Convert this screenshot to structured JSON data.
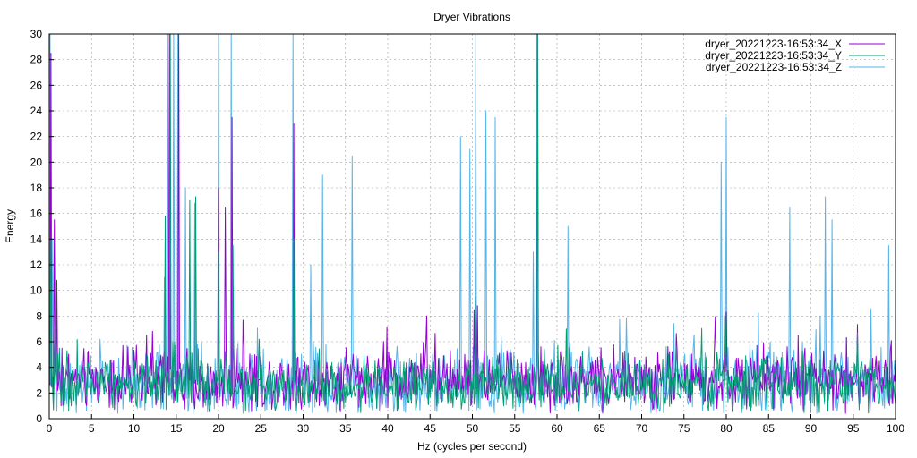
{
  "chart_data": {
    "type": "line",
    "title": "Dryer Vibrations",
    "xlabel": "Hz (cycles per second)",
    "ylabel": "Energy",
    "xlim": [
      0,
      100
    ],
    "ylim": [
      0,
      30
    ],
    "x_ticks": [
      0,
      5,
      10,
      15,
      20,
      25,
      30,
      35,
      40,
      45,
      50,
      55,
      60,
      65,
      70,
      75,
      80,
      85,
      90,
      95,
      100
    ],
    "y_ticks": [
      0,
      2,
      4,
      6,
      8,
      10,
      12,
      14,
      16,
      18,
      20,
      22,
      24,
      26,
      28,
      30
    ],
    "grid": true,
    "legend_position": "top-right",
    "x_step": 0.1,
    "series": [
      {
        "name": "dryer_20221223-16:53:34_X",
        "color": "#9400d3",
        "baseline": 3.0,
        "amplitude": 1.1,
        "peaks": [
          [
            0.2,
            28.5
          ],
          [
            0.6,
            15.5
          ],
          [
            0.9,
            10.8
          ],
          [
            1.5,
            5.5
          ],
          [
            11.5,
            6.5
          ],
          [
            14.2,
            30
          ],
          [
            15.3,
            30
          ],
          [
            20.0,
            18
          ],
          [
            20.8,
            16.5
          ],
          [
            21.6,
            23.5
          ],
          [
            28.9,
            23
          ],
          [
            44.6,
            8
          ],
          [
            50.2,
            8.5
          ],
          [
            50.6,
            8.8
          ],
          [
            57.7,
            30
          ],
          [
            80.0,
            8.3
          ]
        ]
      },
      {
        "name": "dryer_20221223-16:53:34_Y",
        "color": "#009e73",
        "baseline": 2.6,
        "amplitude": 1.0,
        "peaks": [
          [
            0.2,
            14
          ],
          [
            0.7,
            7.5
          ],
          [
            13.7,
            15.8
          ],
          [
            14.3,
            30
          ],
          [
            16.6,
            17
          ],
          [
            17.3,
            17.3
          ],
          [
            20.0,
            13
          ],
          [
            21.7,
            13.5
          ],
          [
            28.9,
            14
          ],
          [
            50.4,
            9.5
          ],
          [
            57.7,
            30
          ],
          [
            61.1,
            7
          ],
          [
            79.9,
            8
          ]
        ]
      },
      {
        "name": "dryer_20221223-16:53:34_Z",
        "color": "#56b4e9",
        "baseline": 2.7,
        "amplitude": 1.3,
        "peaks": [
          [
            0.1,
            30
          ],
          [
            0.4,
            14
          ],
          [
            13.6,
            11
          ],
          [
            14.0,
            30
          ],
          [
            14.7,
            30
          ],
          [
            15.2,
            30
          ],
          [
            16.1,
            18
          ],
          [
            17.2,
            16.8
          ],
          [
            20.0,
            30
          ],
          [
            21.5,
            30
          ],
          [
            28.8,
            30
          ],
          [
            30.9,
            12
          ],
          [
            32.3,
            19
          ],
          [
            35.8,
            20.5
          ],
          [
            48.6,
            22
          ],
          [
            49.7,
            21
          ],
          [
            50.4,
            30
          ],
          [
            51.6,
            24
          ],
          [
            52.7,
            23.5
          ],
          [
            57.2,
            13
          ],
          [
            57.6,
            30
          ],
          [
            61.3,
            15
          ],
          [
            80.0,
            23.5
          ],
          [
            79.4,
            20
          ],
          [
            87.5,
            16.5
          ],
          [
            91.7,
            17.3
          ],
          [
            92.5,
            15.5
          ],
          [
            99.2,
            13.5
          ]
        ]
      }
    ]
  }
}
